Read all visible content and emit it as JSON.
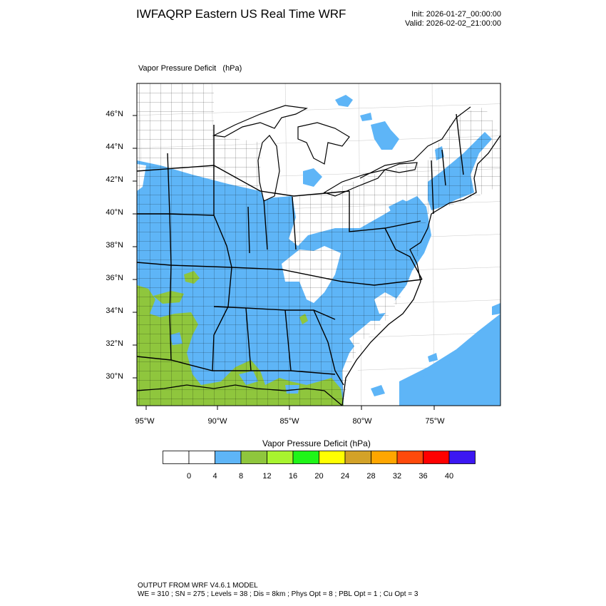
{
  "title": "IWFAQRP Eastern US Real Time WRF",
  "init": "Init: 2026-01-27_00:00:00",
  "valid": "Valid: 2026-02-02_21:00:00",
  "field_label": "Vapor Pressure Deficit",
  "field_units": "(hPa)",
  "lat_labels": [
    "46°N",
    "44°N",
    "42°N",
    "40°N",
    "38°N",
    "36°N",
    "34°N",
    "32°N",
    "30°N"
  ],
  "lon_labels": [
    "95°W",
    "90°W",
    "85°W",
    "80°W",
    "75°W"
  ],
  "colorbar": {
    "title": "Vapor Pressure Deficit  (hPa)",
    "colors": [
      "#ffffff",
      "#ffffff",
      "#5eb5f7",
      "#8fc63d",
      "#a8f42f",
      "#1ff518",
      "#ffff00",
      "#d3a228",
      "#ffa600",
      "#ff4a0b",
      "#ff0000",
      "#3c17f2"
    ],
    "labels": [
      "0",
      "4",
      "8",
      "12",
      "16",
      "20",
      "24",
      "28",
      "32",
      "36",
      "40"
    ]
  },
  "colors": {
    "background": "#ffffff",
    "land_white": "#ffffff",
    "vpd_4_8": "#5eb5f7",
    "vpd_8_12": "#8fc63d",
    "borders": "#000000"
  },
  "footer": {
    "line1": "OUTPUT FROM WRF V4.6.1 MODEL",
    "line2": "WE = 310 ; SN = 275 ; Levels = 38 ; Dis = 8km ; Phys Opt = 8 ; PBL Opt = 1 ; Cu Opt = 3"
  }
}
